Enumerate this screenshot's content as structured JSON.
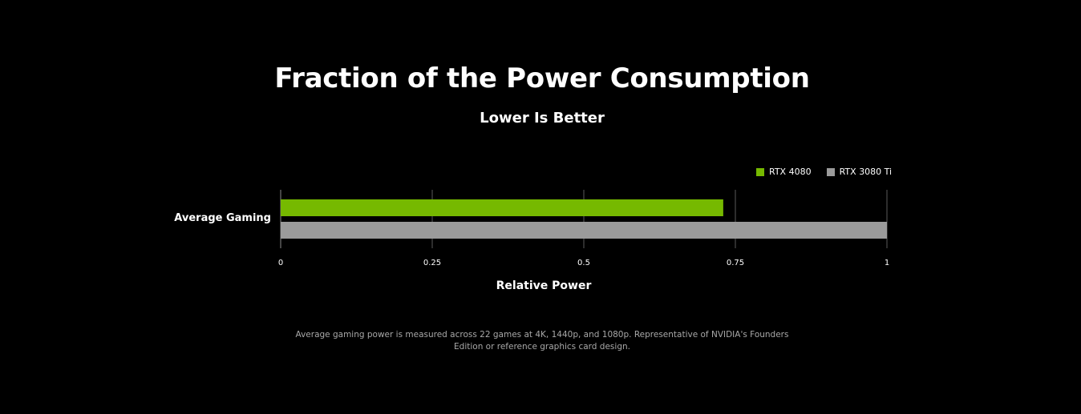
{
  "chart_data": {
    "type": "bar",
    "orientation": "horizontal",
    "title": "Fraction of the Power Consumption",
    "subtitle": "Lower Is Better",
    "categories": [
      "Average Gaming"
    ],
    "series": [
      {
        "name": "RTX 4080",
        "values": [
          0.73
        ],
        "color": "#76b900"
      },
      {
        "name": "RTX 3080 Ti",
        "values": [
          1.0
        ],
        "color": "#9b9b9b"
      }
    ],
    "xlabel": "Relative Power",
    "ylabel": "",
    "xlim": [
      0,
      1
    ],
    "xticks": [
      "0",
      "0.25",
      "0.5",
      "0.75",
      "1"
    ],
    "grid": true,
    "legend_position": "top-right"
  },
  "footnote": {
    "line1": "Average gaming power is measured across 22 games at 4K, 1440p, and 1080p. Representative of NVIDIA's Founders",
    "line2": "Edition or reference graphics card design."
  }
}
